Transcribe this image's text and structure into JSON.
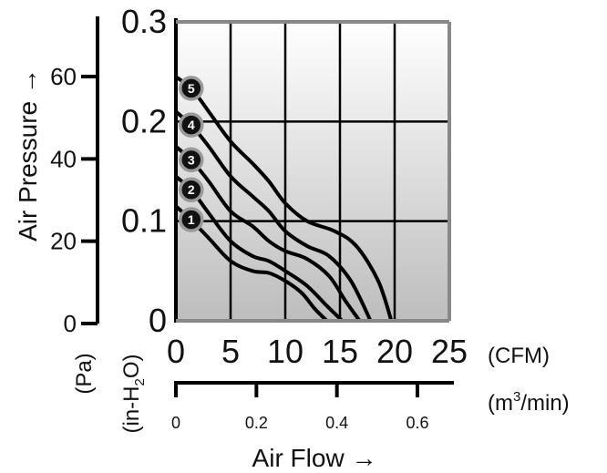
{
  "chart_data": {
    "type": "line",
    "title": "",
    "xlabel": "Air Flow →",
    "ylabel": "Air Pressure →",
    "x_unit_primary": "(CFM)",
    "x_unit_secondary_prefix": "(m",
    "x_unit_secondary_sup": "3",
    "x_unit_secondary_suffix": "/min)",
    "y_unit_primary_prefix": "(in-H",
    "y_unit_primary_sub": "2",
    "y_unit_primary_suffix": "O)",
    "y_unit_secondary": "(Pa)",
    "x_range_cfm": [
      0,
      25
    ],
    "y_range_inh2o": [
      0,
      0.3
    ],
    "x_ticks_cfm": [
      "0",
      "5",
      "10",
      "15",
      "20",
      "25"
    ],
    "y_ticks_inh2o": [
      "0",
      "0.1",
      "0.2",
      "0.3"
    ],
    "x_ticks_m3min": [
      {
        "v": 0,
        "label": "0"
      },
      {
        "v": 0.2,
        "label": "0.2"
      },
      {
        "v": 0.4,
        "label": "0.4"
      },
      {
        "v": 0.6,
        "label": "0.6"
      }
    ],
    "y_ticks_pa": [
      {
        "v": 0,
        "label": "0"
      },
      {
        "v": 20,
        "label": "20"
      },
      {
        "v": 40,
        "label": "40"
      },
      {
        "v": 60,
        "label": "60"
      }
    ],
    "grid": true,
    "series": [
      {
        "name": "1",
        "x": [
          0,
          1.5,
          3,
          5,
          7,
          8.5,
          10,
          11.5,
          12.7,
          13.8
        ],
        "y": [
          0.115,
          0.1,
          0.083,
          0.06,
          0.05,
          0.048,
          0.04,
          0.028,
          0.012,
          0
        ]
      },
      {
        "name": "2",
        "x": [
          0,
          1.5,
          3,
          5,
          7,
          8.5,
          10,
          12,
          13.8,
          15.2
        ],
        "y": [
          0.145,
          0.13,
          0.108,
          0.08,
          0.065,
          0.06,
          0.05,
          0.035,
          0.015,
          0
        ]
      },
      {
        "name": "3",
        "x": [
          0,
          1.5,
          3,
          5,
          7,
          8.5,
          10,
          12,
          14,
          15.5,
          16.8
        ],
        "y": [
          0.175,
          0.16,
          0.14,
          0.11,
          0.095,
          0.08,
          0.07,
          0.062,
          0.045,
          0.02,
          0
        ]
      },
      {
        "name": "4",
        "x": [
          0,
          1.5,
          3,
          5,
          7,
          8.5,
          10,
          12,
          14,
          16,
          17.8
        ],
        "y": [
          0.21,
          0.195,
          0.175,
          0.145,
          0.125,
          0.11,
          0.09,
          0.075,
          0.065,
          0.04,
          0
        ]
      },
      {
        "name": "5",
        "x": [
          0,
          1.5,
          3,
          5,
          7,
          8.5,
          10,
          12,
          14.5,
          16.5,
          18.5,
          19.7
        ],
        "y": [
          0.245,
          0.232,
          0.21,
          0.18,
          0.158,
          0.14,
          0.118,
          0.1,
          0.09,
          0.075,
          0.04,
          0
        ]
      }
    ],
    "colors": {
      "curve": "#000000",
      "grid": "#000000",
      "frame": "#888888",
      "badge_fill": "#111111",
      "badge_ring": "#999999"
    }
  }
}
